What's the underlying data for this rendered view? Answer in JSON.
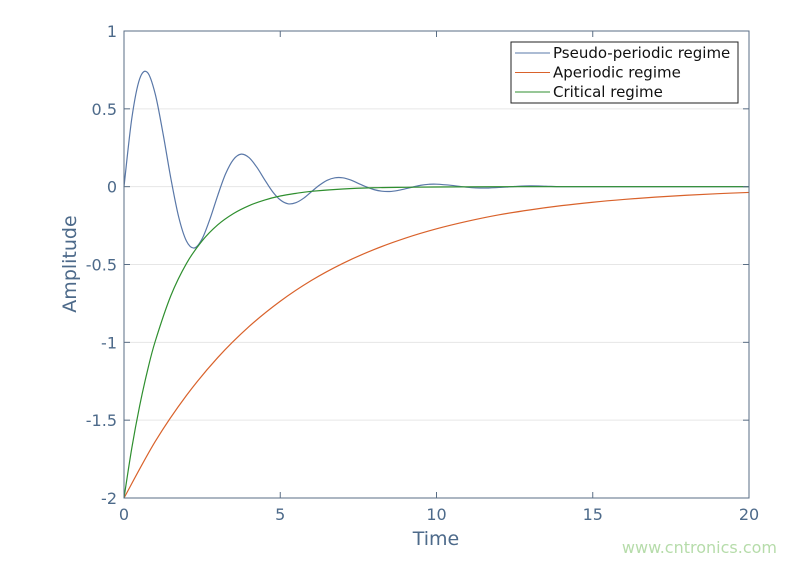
{
  "chart_data": {
    "type": "line",
    "title": "",
    "xlabel": "Time",
    "ylabel": "Amplitude",
    "xlim": [
      0,
      20
    ],
    "ylim": [
      -2,
      1
    ],
    "xticks": [
      0,
      5,
      10,
      15,
      20
    ],
    "xtick_labels": [
      "0",
      "5",
      "10",
      "15",
      "20"
    ],
    "yticks": [
      -2,
      -1.5,
      -1,
      -0.5,
      0,
      0.5,
      1
    ],
    "ytick_labels": [
      "-2",
      "-1.5",
      "-1",
      "-0.5",
      "0",
      "0.5",
      "1"
    ],
    "grid": "horizontal",
    "legend_position": "top-right",
    "series": [
      {
        "name": "Pseudo-periodic regime",
        "color": "#5a78a8",
        "x": [
          0,
          0.25,
          0.5,
          0.75,
          1,
          1.25,
          1.5,
          1.75,
          2,
          2.25,
          2.5,
          2.75,
          3,
          3.25,
          3.5,
          3.75,
          4,
          4.25,
          4.5,
          4.75,
          5,
          5.25,
          5.5,
          5.75,
          6,
          6.25,
          6.5,
          6.75,
          7,
          7.25,
          7.5,
          7.75,
          8,
          8.25,
          8.5,
          8.75,
          9,
          9.25,
          9.5,
          9.75,
          10,
          10.5,
          11,
          11.5,
          12,
          12.5,
          13,
          13.5,
          14,
          15,
          16,
          17,
          18,
          19,
          20
        ],
        "y": [
          0,
          0.439,
          0.692,
          0.734,
          0.595,
          0.34,
          0.052,
          -0.195,
          -0.35,
          -0.394,
          -0.335,
          -0.208,
          -0.056,
          0.082,
          0.174,
          0.209,
          0.187,
          0.125,
          0.045,
          -0.031,
          -0.085,
          -0.11,
          -0.103,
          -0.074,
          -0.032,
          0.009,
          0.041,
          0.057,
          0.057,
          0.043,
          0.021,
          -0.001,
          -0.019,
          -0.029,
          -0.031,
          -0.025,
          -0.014,
          -0.002,
          0.009,
          0.015,
          0.016,
          0.008,
          -0.004,
          -0.009,
          -0.005,
          0.001,
          0.005,
          0.003,
          0,
          0,
          0,
          0,
          0,
          0,
          0
        ]
      },
      {
        "name": "Aperiodic regime",
        "color": "#d9622b",
        "x": [
          0,
          1,
          2,
          3,
          4,
          5,
          6,
          7,
          8,
          9,
          10,
          11,
          12,
          13,
          14,
          15,
          16,
          17,
          18,
          19,
          20
        ],
        "y": [
          -2,
          -1.637,
          -1.341,
          -1.098,
          -0.899,
          -0.736,
          -0.602,
          -0.493,
          -0.404,
          -0.331,
          -0.271,
          -0.222,
          -0.181,
          -0.149,
          -0.122,
          -0.1,
          -0.082,
          -0.067,
          -0.055,
          -0.045,
          -0.037
        ]
      },
      {
        "name": "Critical regime",
        "color": "#2f8f2f",
        "x": [
          0,
          0.25,
          0.5,
          0.75,
          1,
          1.5,
          2,
          2.5,
          3,
          3.5,
          4,
          4.5,
          5,
          5.5,
          6,
          7,
          8,
          9,
          10,
          12,
          15,
          20
        ],
        "y": [
          -2,
          -1.679,
          -1.409,
          -1.183,
          -0.993,
          -0.7,
          -0.493,
          -0.348,
          -0.245,
          -0.173,
          -0.122,
          -0.086,
          -0.06,
          -0.043,
          -0.03,
          -0.015,
          -0.007,
          -0.004,
          -0.002,
          0,
          0,
          0
        ]
      }
    ]
  },
  "watermark": "www.cntronics.com"
}
